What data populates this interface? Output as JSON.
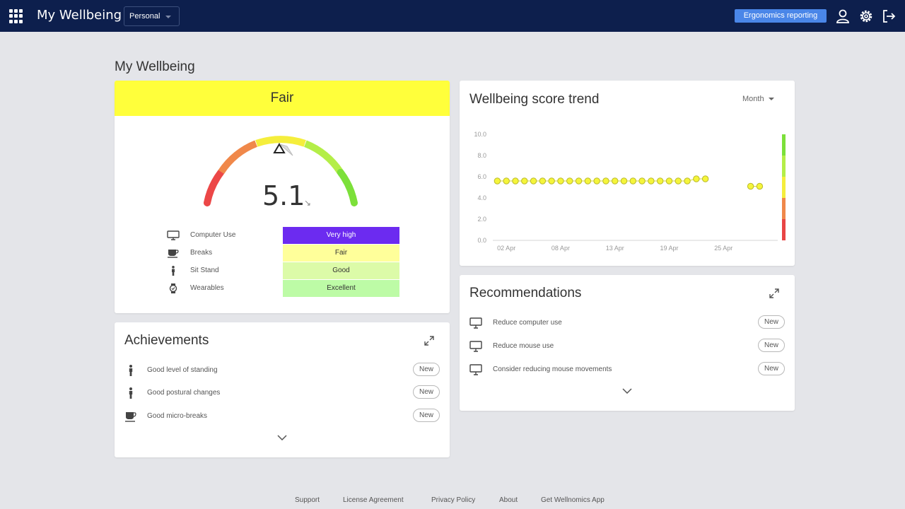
{
  "header": {
    "app_title": "My Wellbeing",
    "context": "Personal",
    "ergonomics_label": "Ergonomics reporting",
    "icons": [
      "apps-grid-icon",
      "user-icon",
      "settings-gear-icon",
      "logout-icon"
    ]
  },
  "page": {
    "title": "My Wellbeing"
  },
  "score": {
    "rating": "Fair",
    "value": "5.1",
    "trend_arrow": "↘",
    "band_color": "#ffff3b",
    "metrics": [
      {
        "icon": "monitor-icon",
        "label": "Computer Use",
        "status": "Very high",
        "color": "#6c2bf0",
        "text_color": "#ffffff"
      },
      {
        "icon": "coffee-cup-icon",
        "label": "Breaks",
        "status": "Fair",
        "color": "#ffff9a",
        "text_color": "#333333"
      },
      {
        "icon": "standing-person-icon",
        "label": "Sit Stand",
        "status": "Good",
        "color": "#dcfba8",
        "text_color": "#333333"
      },
      {
        "icon": "watch-icon",
        "label": "Wearables",
        "status": "Excellent",
        "color": "#bdfba6",
        "text_color": "#333333"
      }
    ]
  },
  "trend": {
    "title": "Wellbeing score trend",
    "period": "Month"
  },
  "chart_data": {
    "type": "line",
    "title": "Wellbeing score trend",
    "xlabel": "",
    "ylabel": "",
    "ylim": [
      0,
      10
    ],
    "yticks": [
      "0.0",
      "2.0",
      "4.0",
      "6.0",
      "8.0",
      "10.0"
    ],
    "xticks": [
      {
        "day": 2,
        "label": "02 Apr"
      },
      {
        "day": 8,
        "label": "08 Apr"
      },
      {
        "day": 14,
        "label": "13 Apr"
      },
      {
        "day": 20,
        "label": "19 Apr"
      },
      {
        "day": 26,
        "label": "25 Apr"
      }
    ],
    "x_range": [
      0.5,
      32
    ],
    "series": [
      {
        "name": "Wellbeing score",
        "color": "#f5f53a",
        "x": [
          1,
          2,
          3,
          4,
          5,
          6,
          7,
          8,
          9,
          10,
          11,
          12,
          13,
          14,
          15,
          16,
          17,
          18,
          19,
          20,
          21,
          22,
          23,
          24,
          25,
          29,
          30
        ],
        "values": [
          5.6,
          5.6,
          5.6,
          5.6,
          5.6,
          5.6,
          5.6,
          5.6,
          5.6,
          5.6,
          5.6,
          5.6,
          5.6,
          5.6,
          5.6,
          5.6,
          5.6,
          5.6,
          5.6,
          5.6,
          5.6,
          5.6,
          5.8,
          5.8,
          null,
          5.1,
          5.1
        ]
      }
    ],
    "color_scale": [
      {
        "from": 8,
        "to": 10,
        "color": "#7ce03a"
      },
      {
        "from": 6,
        "to": 8,
        "color": "#b4ee48"
      },
      {
        "from": 4,
        "to": 6,
        "color": "#f5ee3c"
      },
      {
        "from": 2,
        "to": 4,
        "color": "#f0884a"
      },
      {
        "from": 0,
        "to": 2,
        "color": "#e84545"
      }
    ]
  },
  "recommendations": {
    "title": "Recommendations",
    "items": [
      {
        "icon": "monitor-icon",
        "label": "Reduce computer use",
        "badge": "New"
      },
      {
        "icon": "monitor-icon",
        "label": "Reduce mouse use",
        "badge": "New"
      },
      {
        "icon": "monitor-icon",
        "label": "Consider reducing mouse movements",
        "badge": "New"
      }
    ]
  },
  "achievements": {
    "title": "Achievements",
    "items": [
      {
        "icon": "standing-person-icon",
        "label": "Good level of standing",
        "badge": "New"
      },
      {
        "icon": "standing-person-icon",
        "label": "Good postural changes",
        "badge": "New"
      },
      {
        "icon": "coffee-cup-icon",
        "label": "Good micro-breaks",
        "badge": "New"
      }
    ]
  },
  "footer": {
    "links": [
      "Support",
      "License Agreement",
      "Privacy Policy",
      "About",
      "Get Wellnomics App"
    ]
  }
}
